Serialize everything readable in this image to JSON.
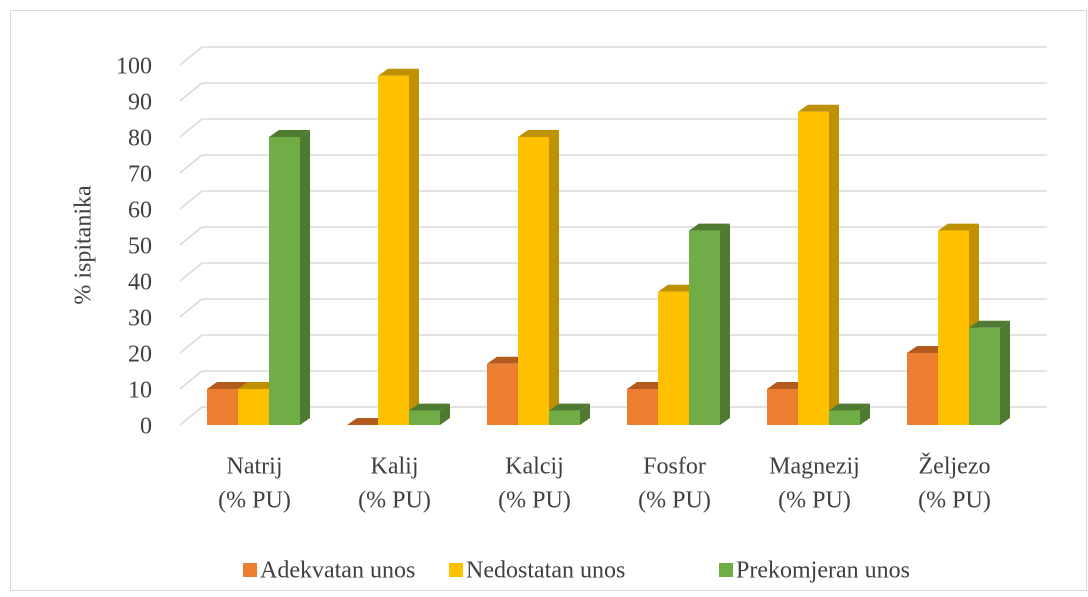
{
  "chart_data": {
    "type": "bar3d",
    "ylabel": "% ispitanika",
    "categories": [
      [
        "Natrij",
        "(% PU)"
      ],
      [
        "Kalij",
        "(% PU)"
      ],
      [
        "Kalcij",
        "(% PU)"
      ],
      [
        "Fosfor",
        "(% PU)"
      ],
      [
        "Magnezij",
        "(% PU)"
      ],
      [
        "Željezo",
        "(% PU)"
      ]
    ],
    "series": [
      {
        "name": "Adekvatan unos",
        "color": "#ed7d31",
        "side": "#b35a1f",
        "values": [
          10,
          0,
          17,
          10,
          10,
          20
        ]
      },
      {
        "name": "Nedostatan unos",
        "color": "#ffc000",
        "side": "#bf9000",
        "values": [
          10,
          97,
          80,
          37,
          87,
          54
        ]
      },
      {
        "name": "Prekomjeran unos",
        "color": "#70ad47",
        "side": "#4e7a31",
        "values": [
          80,
          4,
          4,
          54,
          4,
          27
        ]
      }
    ],
    "ylim": [
      0,
      100
    ],
    "yticks": [
      0,
      10,
      20,
      30,
      40,
      50,
      60,
      70,
      80,
      90,
      100
    ],
    "grid": true,
    "legend": "bottom"
  }
}
